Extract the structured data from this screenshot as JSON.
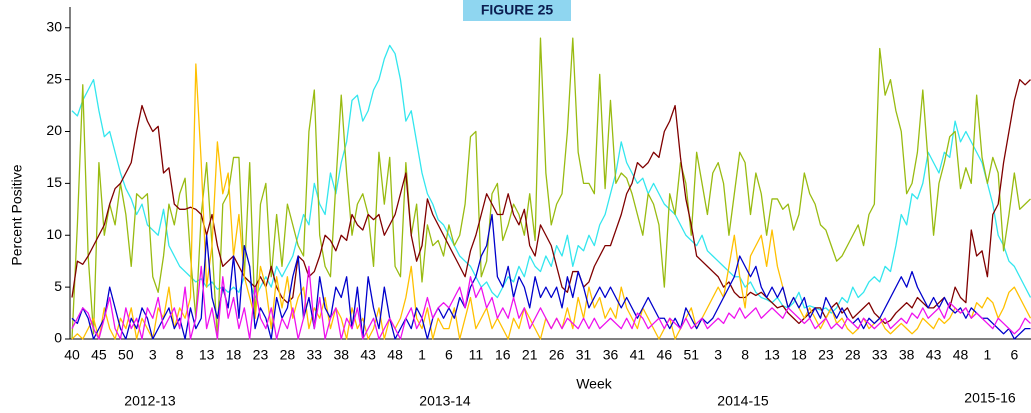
{
  "chart_data": {
    "type": "line",
    "title": "FIGURE 25",
    "ylabel": "Percent  Positive",
    "xlabel": "Week",
    "annotations": [
      "2012-13",
      "2013-14",
      "2014-15",
      "2015-16"
    ],
    "categories": [
      "40",
      null,
      null,
      null,
      null,
      "45",
      null,
      null,
      null,
      null,
      "50",
      null,
      null,
      null,
      null,
      "3",
      null,
      null,
      null,
      null,
      "8",
      null,
      null,
      null,
      null,
      "13",
      null,
      null,
      null,
      null,
      "18",
      null,
      null,
      null,
      null,
      "23",
      null,
      null,
      null,
      null,
      "28",
      null,
      null,
      null,
      null,
      "33",
      null,
      null,
      null,
      null,
      "38",
      null,
      null,
      null,
      null,
      "43",
      null,
      null,
      null,
      null,
      "48",
      null,
      null,
      null,
      null,
      "1",
      null,
      null,
      null,
      null,
      "6",
      null,
      null,
      null,
      null,
      "11",
      null,
      null,
      null,
      null,
      "16",
      null,
      null,
      null,
      null,
      "21",
      null,
      null,
      null,
      null,
      "26",
      null,
      null,
      null,
      null,
      "31",
      null,
      null,
      null,
      null,
      "36",
      null,
      null,
      null,
      null,
      "41",
      null,
      null,
      null,
      null,
      "46",
      null,
      null,
      null,
      null,
      "51",
      null,
      null,
      null,
      null,
      "3",
      null,
      null,
      null,
      null,
      "8",
      null,
      null,
      null,
      null,
      "13",
      null,
      null,
      null,
      null,
      "18",
      null,
      null,
      null,
      null,
      "23",
      null,
      null,
      null,
      null,
      "28",
      null,
      null,
      null,
      null,
      "33",
      null,
      null,
      null,
      null,
      "38",
      null,
      null,
      null,
      null,
      "43",
      null,
      null,
      null,
      null,
      "48",
      null,
      null,
      null,
      null,
      "1",
      null,
      null,
      null,
      null,
      "6",
      null,
      null,
      null
    ],
    "ylim": [
      0,
      32
    ],
    "yticks": [
      0,
      5,
      10,
      15,
      20,
      25,
      30
    ],
    "grid": false,
    "series": [
      {
        "color": "#33e6ee",
        "values": [
          22,
          21.5,
          23,
          24,
          25,
          22,
          19.5,
          20,
          18,
          16,
          14.5,
          13.5,
          12,
          13,
          11,
          10.5,
          10,
          12.5,
          9,
          8,
          7,
          6.5,
          6,
          5.5,
          5.8,
          5,
          5.5,
          4.8,
          5,
          4.5,
          5,
          4.5,
          6,
          5.5,
          4,
          5,
          6,
          5,
          7,
          6,
          7,
          8,
          10,
          12,
          11,
          15,
          13,
          12,
          16,
          14,
          17,
          19,
          23,
          23.5,
          21,
          22,
          24,
          25,
          27,
          28.3,
          27.5,
          25,
          21,
          22,
          19,
          16,
          14,
          13,
          11.5,
          11,
          10,
          9,
          8,
          7.5,
          7,
          6,
          5,
          5.5,
          4.5,
          4,
          5,
          6,
          5.5,
          7,
          6,
          8,
          7,
          6.5,
          8,
          7,
          9,
          8,
          10,
          7,
          9,
          8.5,
          10,
          9,
          11,
          12,
          14,
          16,
          19,
          17,
          16,
          15,
          15.5,
          14,
          15,
          14,
          13,
          12.5,
          12,
          11,
          10,
          9.5,
          9,
          10,
          8.5,
          8,
          7.5,
          7,
          6.5,
          6,
          6,
          5,
          5.5,
          4.5,
          4,
          3.8,
          3.5,
          4,
          3.2,
          3,
          3.5,
          4.5,
          3,
          3.2,
          3,
          2.8,
          3,
          2.5,
          3,
          4,
          3.5,
          5,
          4,
          4.5,
          5.5,
          6,
          5.5,
          7,
          6.5,
          9,
          12,
          11,
          14,
          13.5,
          15,
          18,
          17,
          16,
          18,
          17.5,
          21,
          19,
          20,
          19,
          18,
          17,
          15,
          13,
          10,
          9,
          7.5,
          7,
          6,
          5,
          4
        ]
      },
      {
        "color": "#99bb11",
        "values": [
          0,
          11,
          24.5,
          8,
          0.5,
          17,
          10,
          13,
          11,
          15,
          12,
          7,
          14,
          13.5,
          14,
          6,
          4.5,
          8,
          13,
          11,
          14,
          15.5,
          8,
          2,
          12,
          17,
          9,
          0,
          13,
          14,
          17.5,
          17.5,
          6,
          17,
          2,
          13,
          15,
          6,
          12,
          7,
          13,
          11,
          9,
          8,
          20,
          24,
          10,
          7,
          6,
          15,
          23.5,
          16,
          10,
          13,
          14,
          12,
          7,
          18,
          13,
          17.5,
          7,
          6,
          17,
          10,
          13,
          5.5,
          11,
          9,
          9.5,
          8,
          11,
          9,
          10,
          13,
          19.5,
          20,
          6,
          7.5,
          14,
          15,
          9.5,
          11,
          13,
          12,
          10,
          14,
          9.5,
          29,
          16,
          11,
          13,
          14,
          20,
          29,
          18,
          15,
          15,
          14,
          25.5,
          14.5,
          23,
          15,
          16,
          15.5,
          14,
          12,
          10,
          14,
          13,
          11,
          5,
          14,
          12,
          17,
          15,
          10,
          18,
          15,
          12,
          16,
          17,
          15,
          10,
          14,
          18,
          17,
          12,
          16,
          14,
          10,
          13.5,
          13.5,
          12.5,
          13,
          10.5,
          12,
          16,
          14,
          13,
          11,
          10.5,
          9,
          7.5,
          8,
          9,
          10,
          11,
          9,
          12,
          13,
          28,
          23.5,
          25,
          22,
          20,
          14,
          15,
          18,
          24,
          17,
          10,
          15,
          17,
          19.5,
          20,
          14.5,
          16.5,
          15,
          23.5,
          17.5,
          15,
          17.5,
          16,
          8.5,
          12,
          16,
          12.5,
          13,
          13.5
        ]
      },
      {
        "color": "#800000",
        "values": [
          4,
          7.5,
          7.2,
          8,
          9,
          10,
          11,
          13,
          14.5,
          15,
          16,
          17,
          20,
          22.5,
          21,
          20,
          20.5,
          16,
          16.5,
          13,
          12.5,
          12.5,
          12.7,
          12.5,
          12,
          10,
          12,
          9,
          7,
          7.5,
          8,
          7,
          6,
          5.5,
          5,
          6,
          5,
          7,
          5,
          4,
          3.5,
          4,
          8,
          7.5,
          6,
          6.5,
          8,
          10,
          9.5,
          8.5,
          10,
          9.5,
          12,
          11,
          10.5,
          12,
          11.5,
          12,
          10,
          11,
          12,
          14,
          16,
          10,
          7.5,
          9,
          13.5,
          12,
          11,
          10,
          9,
          8,
          7,
          6,
          8.5,
          10,
          12,
          14,
          13,
          12,
          12,
          14,
          12,
          11,
          12.5,
          9,
          8,
          11,
          10,
          9,
          7,
          5,
          4.5,
          6.5,
          6.5,
          5,
          5.5,
          7,
          8,
          9,
          9,
          10.5,
          12,
          14,
          15,
          17,
          16.5,
          17,
          18,
          17.5,
          20,
          21,
          22.5,
          17.5,
          13.5,
          11,
          8,
          7.5,
          7,
          6.5,
          6,
          5,
          5.5,
          4.5,
          4,
          4,
          4.5,
          4.2,
          4.5,
          4,
          3.5,
          3,
          3.2,
          2.5,
          2,
          1.5,
          2,
          2.5,
          3,
          3,
          2,
          3,
          3.5,
          2.5,
          3,
          2,
          2.5,
          3,
          3.5,
          2.5,
          2,
          1.5,
          1.8,
          2.5,
          3,
          3.5,
          3,
          4,
          3.5,
          3,
          3,
          3.5,
          4,
          3,
          5,
          4,
          3.5,
          10.5,
          8,
          8.5,
          6,
          12,
          13,
          17,
          20,
          23,
          25,
          24.5,
          25
        ]
      },
      {
        "color": "#ffc000",
        "values": [
          0,
          0.5,
          0,
          1,
          2,
          0,
          3,
          1,
          0,
          2,
          1,
          3,
          0,
          2,
          1,
          0,
          3,
          2,
          5,
          1,
          3,
          2,
          4,
          26.5,
          17,
          5,
          9,
          19,
          14,
          16,
          8,
          12,
          6,
          4,
          2,
          7,
          5,
          1,
          6,
          3,
          6,
          2,
          4,
          5,
          1,
          3,
          2,
          4,
          1,
          3,
          2,
          0,
          3,
          1,
          2,
          0,
          1,
          3,
          0,
          2,
          1,
          2,
          4,
          7,
          2,
          1,
          3,
          0,
          2,
          1,
          1,
          3,
          0,
          2,
          4,
          1,
          2,
          3,
          1,
          2,
          1,
          0,
          2,
          1,
          3,
          2,
          1,
          0,
          2,
          1,
          2,
          1,
          3,
          1,
          4,
          2,
          5,
          3,
          4,
          2,
          3,
          2,
          5,
          3,
          2,
          1,
          3,
          2,
          1,
          0,
          1,
          2,
          0,
          1,
          2,
          3,
          1,
          2,
          3,
          4,
          5,
          4,
          7,
          10,
          6,
          3,
          8,
          9,
          10,
          7,
          10.5,
          7,
          5,
          3,
          4,
          3,
          2,
          3,
          2,
          1,
          2,
          3,
          1.5,
          2,
          1,
          0.5,
          1,
          2,
          1,
          1.5,
          2,
          1,
          0.5,
          1,
          1.5,
          1,
          0.5,
          1,
          2,
          1.5,
          1,
          2,
          1.5,
          2,
          3,
          2.5,
          3,
          2,
          3.5,
          3,
          4,
          3.5,
          2,
          3,
          4.5,
          5,
          4,
          3,
          2
        ]
      },
      {
        "color": "#0000cc",
        "values": [
          2,
          1.5,
          3,
          2,
          0,
          1,
          2,
          5,
          3,
          1,
          0,
          2,
          1,
          3,
          2,
          0,
          1,
          2,
          3,
          1,
          2,
          0,
          3,
          1,
          2,
          10,
          4,
          2,
          5,
          3,
          8,
          2,
          9,
          7,
          1,
          3,
          2,
          0,
          4,
          2,
          3,
          6,
          8,
          2,
          4,
          1,
          6,
          3,
          2,
          5,
          4,
          6,
          1,
          5,
          0,
          6,
          3,
          1,
          5,
          2,
          0,
          1,
          2,
          1,
          3,
          2,
          0,
          2,
          3,
          2,
          3,
          2,
          4,
          3,
          5,
          6,
          8,
          9,
          12,
          6,
          5,
          7,
          4,
          6,
          5,
          3,
          6,
          4,
          5,
          4,
          5,
          3,
          6,
          4,
          6.5,
          5,
          3,
          4,
          5,
          4,
          5,
          4,
          3,
          4,
          3,
          2,
          3,
          4,
          3,
          2,
          2,
          1,
          2,
          1,
          3,
          2,
          1,
          2,
          1.5,
          2,
          3,
          4,
          5,
          6,
          8,
          7,
          6,
          7,
          5,
          4,
          5,
          4,
          5,
          3,
          4,
          3,
          4,
          2,
          3,
          2,
          4,
          3,
          2,
          3,
          2,
          1.5,
          2,
          1,
          2,
          1.5,
          2,
          3,
          4,
          5,
          6,
          5,
          6.5,
          5,
          4,
          3,
          4,
          3,
          4,
          3,
          2.5,
          3,
          2,
          3,
          2.5,
          2,
          2,
          1.5,
          1,
          0.5,
          1,
          0,
          0.5,
          1,
          1
        ]
      },
      {
        "color": "#ee11ee",
        "values": [
          1,
          2,
          3,
          2.5,
          1,
          0,
          2,
          4,
          1,
          0,
          3,
          1,
          2,
          0,
          3,
          2,
          4,
          1,
          2,
          3,
          1,
          5,
          0,
          2,
          7,
          1,
          3,
          0,
          6,
          2,
          4,
          1,
          3,
          0,
          5,
          2,
          1,
          3,
          0,
          2,
          1,
          3,
          0,
          2,
          7,
          1,
          4,
          0,
          2,
          3,
          0,
          2,
          1,
          3,
          0,
          1,
          2,
          0,
          1,
          2,
          1,
          0,
          2,
          3,
          1,
          2,
          4,
          2,
          3,
          3.5,
          3,
          4,
          5,
          3,
          6,
          4,
          5,
          3,
          4,
          2,
          3,
          2,
          4,
          2,
          3,
          1,
          2,
          3,
          2,
          1,
          2,
          1,
          2,
          1.5,
          1,
          2,
          1,
          2,
          1,
          1.5,
          2,
          1.5,
          1,
          2,
          1,
          2.5,
          2,
          1,
          1.5,
          2,
          1,
          2,
          1.5,
          1,
          2,
          1,
          1.5,
          2,
          1,
          1.5,
          2,
          1.5,
          2.5,
          2,
          3,
          2,
          2.5,
          3,
          2,
          2.5,
          3,
          2.5,
          2,
          3,
          2.5,
          2,
          1.5,
          2,
          1,
          1.5,
          2,
          1,
          1.5,
          1,
          2,
          1.5,
          1,
          2,
          1.5,
          1,
          1.5,
          2,
          1,
          1.5,
          2,
          1.5,
          2.5,
          2,
          3,
          2,
          2.5,
          3,
          2,
          3.5,
          3,
          2.5,
          3,
          2,
          2.5,
          2,
          1.5,
          1,
          2,
          1.5,
          1,
          0.5,
          1,
          2,
          1.5
        ]
      }
    ]
  }
}
